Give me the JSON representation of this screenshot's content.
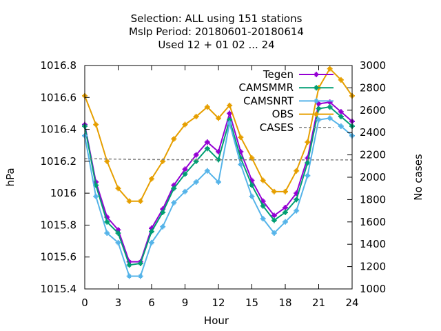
{
  "chart_data": {
    "type": "line",
    "title_lines": [
      "Selection: ALL using   151 stations",
      "Mslp   Period: 20180601-20180614",
      "Used  12 + 01 02 ... 24"
    ],
    "xlabel": "Hour",
    "ylabel": "hPa",
    "y2label": "No cases",
    "xlim": [
      0,
      24
    ],
    "ylim": [
      1015.4,
      1016.8
    ],
    "y2lim": [
      1000,
      3000
    ],
    "xticks": [
      0,
      3,
      6,
      9,
      12,
      15,
      18,
      21,
      24
    ],
    "yticks": [
      1015.4,
      1015.6,
      1015.8,
      1016,
      1016.2,
      1016.4,
      1016.6,
      1016.8
    ],
    "ytick_labels": [
      "1015.4",
      "1015.6",
      "1015.8",
      "1016",
      "1016.2",
      "1016.4",
      "1016.6",
      "1016.8"
    ],
    "y2ticks": [
      1000,
      1200,
      1400,
      1600,
      1800,
      2000,
      2200,
      2400,
      2600,
      2800,
      3000
    ],
    "grid": false,
    "legend_position": "top-right",
    "x": [
      0,
      1,
      2,
      3,
      4,
      5,
      6,
      7,
      8,
      9,
      10,
      11,
      12,
      13,
      14,
      15,
      16,
      17,
      18,
      19,
      20,
      21,
      22,
      23,
      24
    ],
    "series": [
      {
        "name": "Tegen",
        "color": "#9400d3",
        "axis": "y",
        "dash": false,
        "marker": true,
        "values": [
          1016.43,
          1016.07,
          1015.85,
          1015.77,
          1015.57,
          1015.57,
          1015.78,
          1015.9,
          1016.05,
          1016.15,
          1016.24,
          1016.32,
          1016.26,
          1016.5,
          1016.26,
          1016.08,
          1015.95,
          1015.86,
          1015.91,
          1016.0,
          1016.22,
          1016.56,
          1016.57,
          1016.51,
          1016.45
        ]
      },
      {
        "name": "CAMSMMR",
        "color": "#009e73",
        "axis": "y",
        "dash": false,
        "marker": true,
        "values": [
          1016.42,
          1016.05,
          1015.82,
          1015.75,
          1015.55,
          1015.56,
          1015.76,
          1015.88,
          1016.03,
          1016.12,
          1016.2,
          1016.28,
          1016.21,
          1016.46,
          1016.22,
          1016.05,
          1015.92,
          1015.83,
          1015.88,
          1015.96,
          1016.19,
          1016.53,
          1016.54,
          1016.48,
          1016.42
        ]
      },
      {
        "name": "CAMSNRT",
        "color": "#56b4e9",
        "axis": "y",
        "dash": false,
        "marker": true,
        "values": [
          1016.36,
          1015.98,
          1015.75,
          1015.69,
          1015.48,
          1015.48,
          1015.69,
          1015.79,
          1015.94,
          1016.01,
          1016.07,
          1016.14,
          1016.07,
          1016.44,
          1016.18,
          1015.98,
          1015.84,
          1015.75,
          1015.82,
          1015.89,
          1016.11,
          1016.46,
          1016.47,
          1016.42,
          1016.36
        ]
      },
      {
        "name": "OBS",
        "color": "#e69f00",
        "axis": "y",
        "dash": false,
        "marker": true,
        "values": [
          1016.61,
          1016.43,
          1016.2,
          1016.03,
          1015.95,
          1015.95,
          1016.09,
          1016.2,
          1016.34,
          1016.43,
          1016.48,
          1016.54,
          1016.47,
          1016.55,
          1016.35,
          1016.22,
          1016.08,
          1016.01,
          1016.01,
          1016.14,
          1016.32,
          1016.66,
          1016.78,
          1016.71,
          1016.61
        ]
      },
      {
        "name": "CASES",
        "color": "#808080",
        "axis": "y2",
        "dash": true,
        "marker": false,
        "values": [
          2165,
          2165,
          2163,
          2162,
          2160,
          2160,
          2158,
          2158,
          2157,
          2157,
          2156,
          2156,
          2156,
          2156,
          2156,
          2156,
          2155,
          2155,
          2155,
          2155,
          2155,
          2155,
          2155,
          2155,
          2155
        ]
      }
    ]
  }
}
